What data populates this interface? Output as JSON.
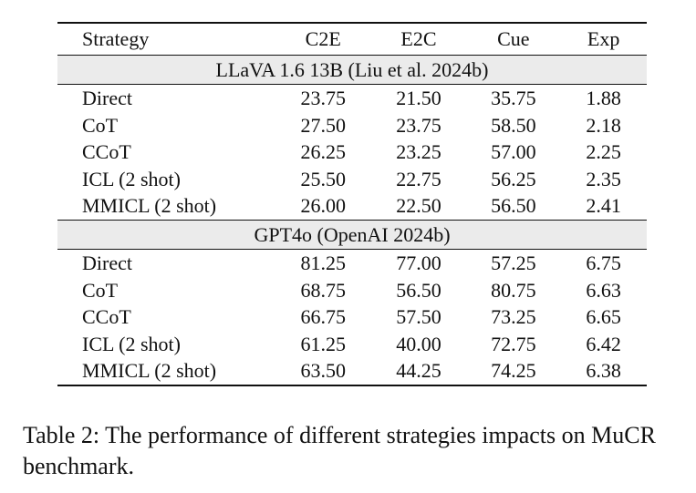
{
  "table": {
    "columns": [
      "Strategy",
      "C2E",
      "E2C",
      "Cue",
      "Exp"
    ],
    "groups": [
      {
        "title": "LLaVA 1.6 13B (Liu et al. 2024b)",
        "rows": [
          [
            "Direct",
            "23.75",
            "21.50",
            "35.75",
            "1.88"
          ],
          [
            "CoT",
            "27.50",
            "23.75",
            "58.50",
            "2.18"
          ],
          [
            "CCoT",
            "26.25",
            "23.25",
            "57.00",
            "2.25"
          ],
          [
            "ICL (2 shot)",
            "25.50",
            "22.75",
            "56.25",
            "2.35"
          ],
          [
            "MMICL (2 shot)",
            "26.00",
            "22.50",
            "56.50",
            "2.41"
          ]
        ]
      },
      {
        "title": "GPT4o (OpenAI 2024b)",
        "rows": [
          [
            "Direct",
            "81.25",
            "77.00",
            "57.25",
            "6.75"
          ],
          [
            "CoT",
            "68.75",
            "56.50",
            "80.75",
            "6.63"
          ],
          [
            "CCoT",
            "66.75",
            "57.50",
            "73.25",
            "6.65"
          ],
          [
            "ICL (2 shot)",
            "61.25",
            "40.00",
            "72.75",
            "6.42"
          ],
          [
            "MMICL (2 shot)",
            "63.50",
            "44.25",
            "74.25",
            "6.38"
          ]
        ]
      }
    ]
  },
  "caption": "Table 2: The performance of different strategies impacts on MuCR benchmark."
}
